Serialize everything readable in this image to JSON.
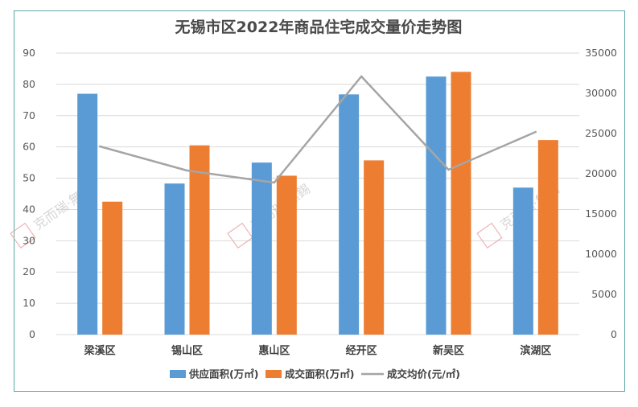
{
  "chart_data": {
    "type": "bar",
    "title": "无锡市区2022年商品住宅成交量价走势图",
    "categories": [
      "梁溪区",
      "锡山区",
      "惠山区",
      "经开区",
      "新吴区",
      "滨湖区"
    ],
    "series": [
      {
        "name": "供应面积(万㎡)",
        "type": "bar",
        "axis": "left",
        "color": "#5b9bd5",
        "values": [
          77,
          48.3,
          55,
          76.8,
          82.5,
          47
        ]
      },
      {
        "name": "成交面积(万㎡)",
        "type": "bar",
        "axis": "left",
        "color": "#ed7d31",
        "values": [
          42.5,
          60.5,
          50.8,
          55.7,
          84,
          62.2
        ]
      },
      {
        "name": "成交均价(元/㎡)",
        "type": "line",
        "axis": "right",
        "color": "#a5a5a5",
        "values": [
          23400,
          20400,
          18900,
          32100,
          20500,
          25200
        ]
      }
    ],
    "ylim_left": [
      0,
      90
    ],
    "ylim_right": [
      0,
      35000
    ],
    "yticks_left": [
      "0",
      "10",
      "20",
      "30",
      "40",
      "50",
      "60",
      "70",
      "80",
      "90"
    ],
    "yticks_right": [
      "0",
      "5000",
      "10000",
      "15000",
      "20000",
      "25000",
      "30000",
      "35000"
    ],
    "grid": true,
    "legend": "bottom"
  },
  "watermark": {
    "text": "克而瑞·無錫"
  }
}
